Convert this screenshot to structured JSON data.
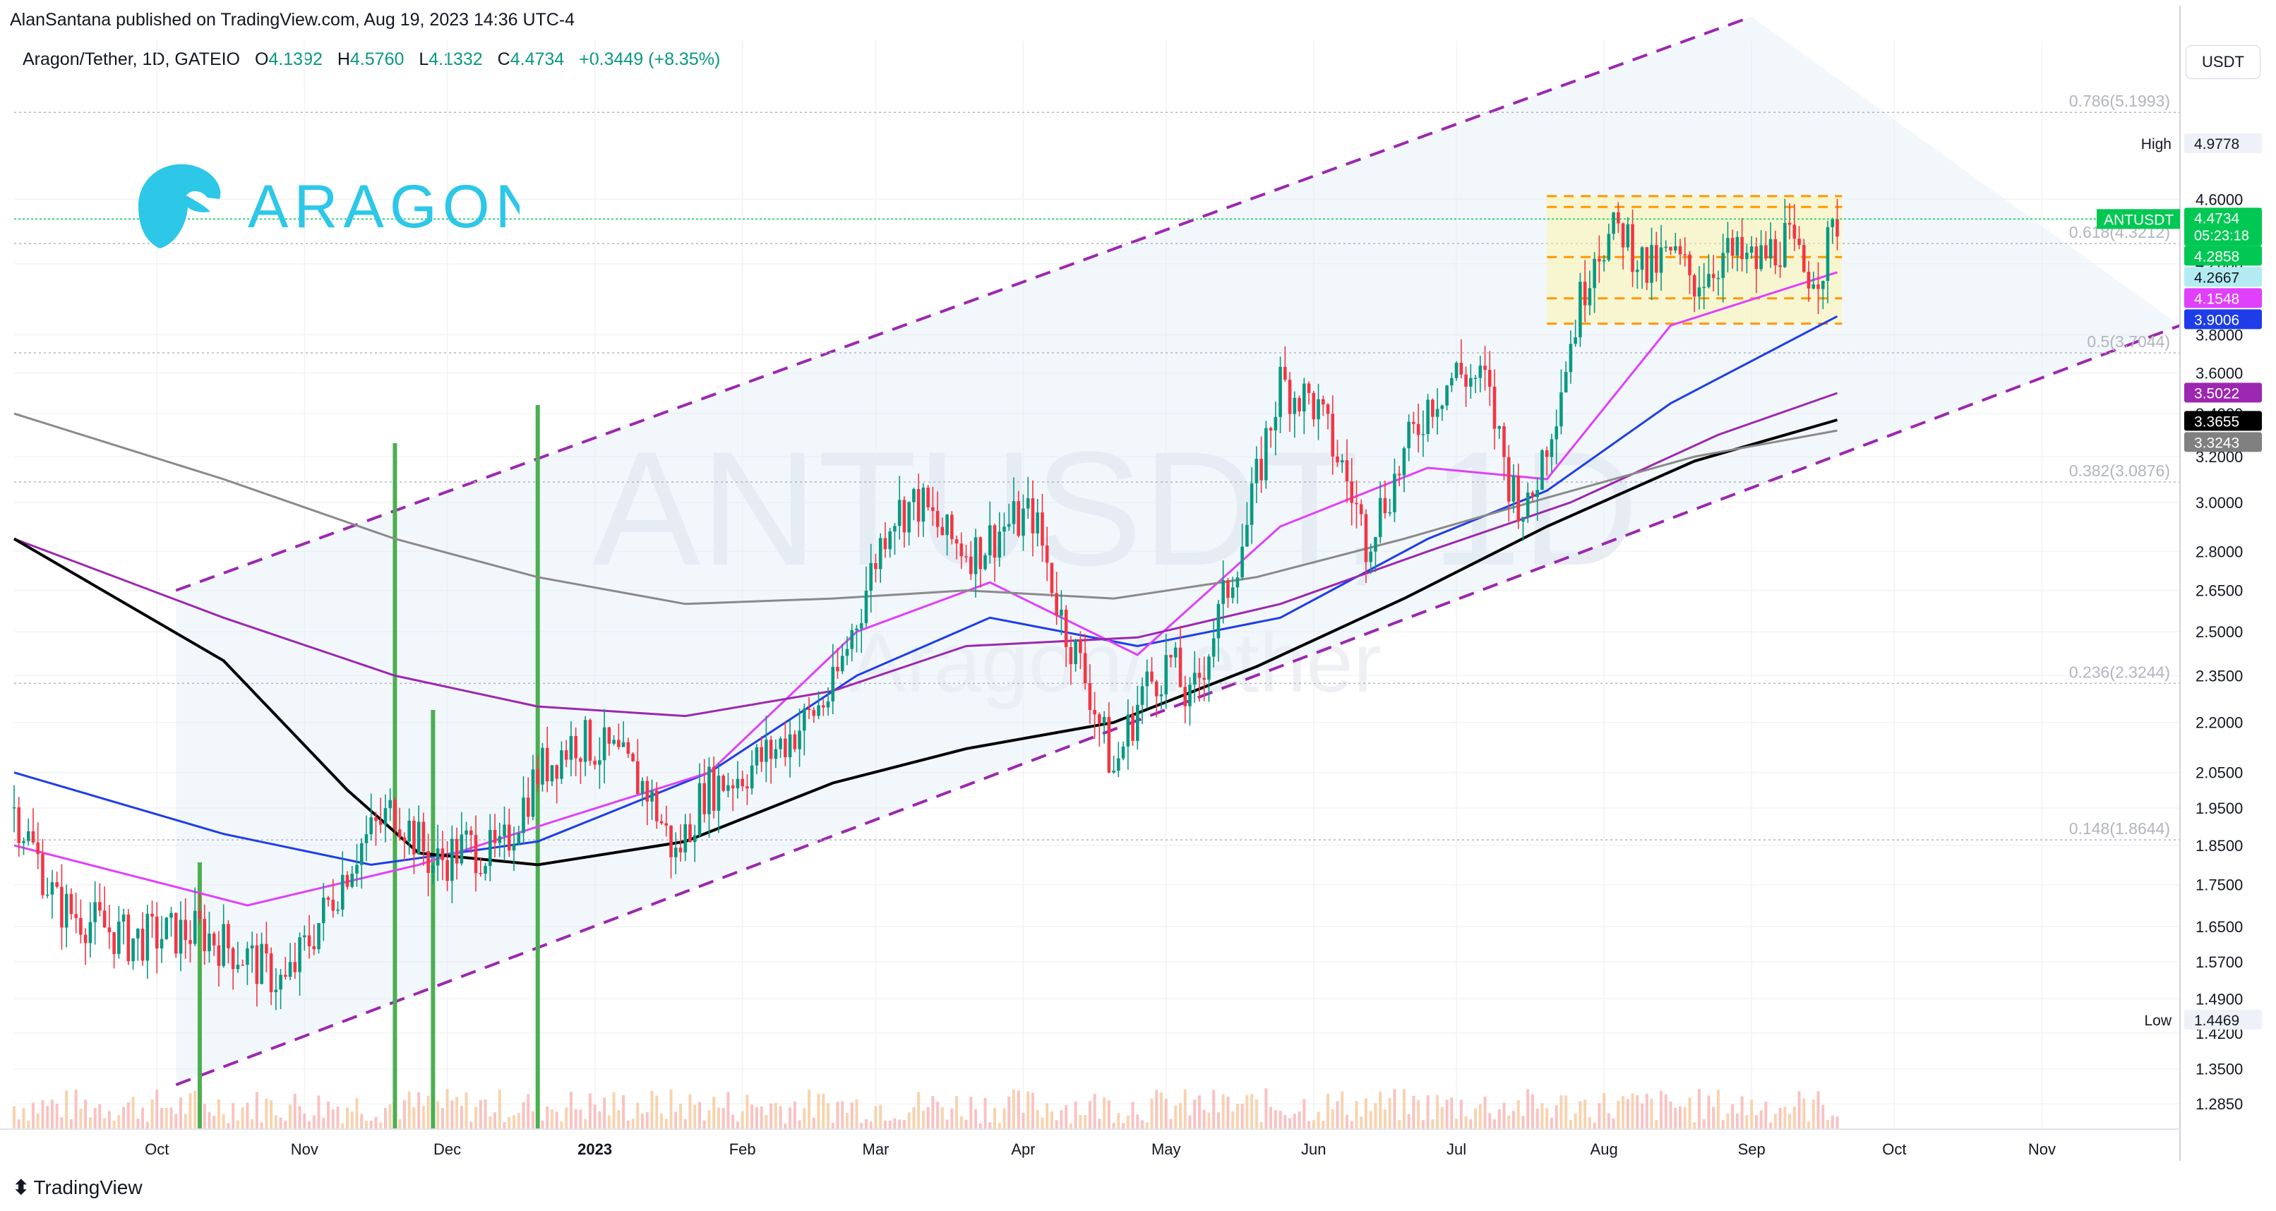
{
  "header": {
    "publisher": "AlanSantana published on TradingView.com, Aug 19, 2023 14:36 UTC-4",
    "symbol": "Aragon/Tether, 1D, GATEIO",
    "open_label": "O",
    "open": "4.1392",
    "high_label": "H",
    "high": "4.5760",
    "low_label": "L",
    "low": "4.1332",
    "close_label": "C",
    "close": "4.4734",
    "change": "+0.3449 (+8.35%)",
    "currency": "USDT"
  },
  "logo": {
    "text": "ARAGON",
    "color": "#2dc7e8"
  },
  "watermark": {
    "line1": "ANTUSDT, 1D",
    "line2": "Aragon/Tether"
  },
  "footer": {
    "brand": "TradingView"
  },
  "chart_data": {
    "type": "candlestick",
    "y_scale": "log",
    "ylim": [
      1.24,
      5.75
    ],
    "x_range": [
      "2022-09-01",
      "2023-11-30"
    ],
    "price_ticks": [
      "4.6000",
      "4.2000",
      "3.8000",
      "3.6000",
      "3.4000",
      "3.2000",
      "3.0000",
      "2.8000",
      "2.6500",
      "2.5000",
      "2.3500",
      "2.2000",
      "2.0500",
      "1.9500",
      "1.8500",
      "1.7500",
      "1.6500",
      "1.5700",
      "1.4900",
      "1.4200",
      "1.3500",
      "1.2850"
    ],
    "x_ticks": [
      {
        "label": "Oct",
        "date": "2022-10-01"
      },
      {
        "label": "Nov",
        "date": "2022-11-01"
      },
      {
        "label": "Dec",
        "date": "2022-12-01"
      },
      {
        "label": "2023",
        "date": "2023-01-01"
      },
      {
        "label": "Feb",
        "date": "2023-02-01"
      },
      {
        "label": "Mar",
        "date": "2023-03-01"
      },
      {
        "label": "Apr",
        "date": "2023-04-01"
      },
      {
        "label": "May",
        "date": "2023-05-01"
      },
      {
        "label": "Jun",
        "date": "2023-06-01"
      },
      {
        "label": "Jul",
        "date": "2023-07-01"
      },
      {
        "label": "Aug",
        "date": "2023-08-01"
      },
      {
        "label": "Sep",
        "date": "2023-09-01"
      },
      {
        "label": "Oct",
        "date": "2023-10-01"
      },
      {
        "label": "Nov",
        "date": "2023-11-01"
      }
    ],
    "price_path": [
      [
        "2022-09-01",
        1.95
      ],
      [
        "2022-09-10",
        1.7
      ],
      [
        "2022-09-25",
        1.62
      ],
      [
        "2022-10-10",
        1.64
      ],
      [
        "2022-10-20",
        1.58
      ],
      [
        "2022-10-28",
        1.52
      ],
      [
        "2022-11-05",
        1.68
      ],
      [
        "2022-11-12",
        1.84
      ],
      [
        "2022-11-20",
        1.95
      ],
      [
        "2022-11-28",
        1.8
      ],
      [
        "2022-12-05",
        1.85
      ],
      [
        "2022-12-12",
        1.82
      ],
      [
        "2022-12-20",
        2.05
      ],
      [
        "2022-12-28",
        2.15
      ],
      [
        "2023-01-05",
        2.1
      ],
      [
        "2023-01-12",
        2.0
      ],
      [
        "2023-01-18",
        1.82
      ],
      [
        "2023-01-24",
        2.0
      ],
      [
        "2023-02-01",
        2.05
      ],
      [
        "2023-02-08",
        2.12
      ],
      [
        "2023-02-14",
        2.2
      ],
      [
        "2023-02-20",
        2.3
      ],
      [
        "2023-02-26",
        2.6
      ],
      [
        "2023-03-04",
        2.95
      ],
      [
        "2023-03-10",
        3.0
      ],
      [
        "2023-03-16",
        2.85
      ],
      [
        "2023-03-22",
        2.8
      ],
      [
        "2023-03-28",
        2.9
      ],
      [
        "2023-04-03",
        2.95
      ],
      [
        "2023-04-09",
        2.55
      ],
      [
        "2023-04-15",
        2.3
      ],
      [
        "2023-04-20",
        2.05
      ],
      [
        "2023-04-26",
        2.3
      ],
      [
        "2023-05-02",
        2.4
      ],
      [
        "2023-05-06",
        2.25
      ],
      [
        "2023-05-12",
        2.55
      ],
      [
        "2023-05-18",
        2.9
      ],
      [
        "2023-05-25",
        3.55
      ],
      [
        "2023-06-01",
        3.45
      ],
      [
        "2023-06-07",
        3.15
      ],
      [
        "2023-06-12",
        2.85
      ],
      [
        "2023-06-18",
        3.1
      ],
      [
        "2023-06-25",
        3.45
      ],
      [
        "2023-07-01",
        3.6
      ],
      [
        "2023-07-07",
        3.55
      ],
      [
        "2023-07-12",
        3.1
      ],
      [
        "2023-07-16",
        2.95
      ],
      [
        "2023-07-22",
        3.45
      ],
      [
        "2023-07-30",
        4.3
      ],
      [
        "2023-08-05",
        4.4
      ],
      [
        "2023-08-10",
        4.15
      ],
      [
        "2023-08-15",
        4.25
      ],
      [
        "2023-08-20",
        4.1
      ],
      [
        "2023-08-26",
        4.25
      ],
      [
        "2023-09-02",
        4.2
      ],
      [
        "2023-09-08",
        4.35
      ],
      [
        "2023-09-12",
        4.15
      ],
      [
        "2023-09-16",
        4.2
      ],
      [
        "2023-09-19",
        4.47
      ]
    ],
    "series": [
      {
        "name": "ANTUSDT",
        "last": "4.4734",
        "countdown": "05:23:18",
        "color": "#00c853"
      }
    ],
    "ma_badges": [
      {
        "value": "4.2858",
        "color": "#00c853"
      },
      {
        "value": "4.2667",
        "color": "#b2ebf2"
      },
      {
        "value": "4.1548",
        "color": "#e040fb"
      },
      {
        "value": "3.9006",
        "color": "#1e3de8"
      },
      {
        "value": "3.5022",
        "color": "#9c27b0"
      },
      {
        "value": "3.3655",
        "color": "#000000"
      },
      {
        "value": "3.3243",
        "color": "#808080"
      }
    ],
    "moving_averages": [
      {
        "color": "#1e3de8",
        "pts": [
          [
            "2022-09-01",
            2.05
          ],
          [
            "2022-10-15",
            1.88
          ],
          [
            "2022-11-15",
            1.8
          ],
          [
            "2022-12-20",
            1.86
          ],
          [
            "2023-01-25",
            2.05
          ],
          [
            "2023-02-25",
            2.35
          ],
          [
            "2023-03-25",
            2.55
          ],
          [
            "2023-04-25",
            2.45
          ],
          [
            "2023-05-25",
            2.55
          ],
          [
            "2023-06-25",
            2.85
          ],
          [
            "2023-07-20",
            3.05
          ],
          [
            "2023-08-15",
            3.45
          ],
          [
            "2023-09-19",
            3.9
          ]
        ]
      },
      {
        "color": "#e040fb",
        "pts": [
          [
            "2022-09-01",
            1.85
          ],
          [
            "2022-10-20",
            1.7
          ],
          [
            "2022-11-25",
            1.8
          ],
          [
            "2022-12-25",
            1.92
          ],
          [
            "2023-01-25",
            2.05
          ],
          [
            "2023-02-25",
            2.5
          ],
          [
            "2023-03-25",
            2.68
          ],
          [
            "2023-04-25",
            2.42
          ],
          [
            "2023-05-25",
            2.9
          ],
          [
            "2023-06-25",
            3.15
          ],
          [
            "2023-07-20",
            3.1
          ],
          [
            "2023-08-15",
            3.85
          ],
          [
            "2023-09-19",
            4.15
          ]
        ]
      },
      {
        "color": "#9c27b0",
        "pts": [
          [
            "2022-09-01",
            2.85
          ],
          [
            "2022-10-15",
            2.55
          ],
          [
            "2022-11-20",
            2.35
          ],
          [
            "2022-12-20",
            2.25
          ],
          [
            "2023-01-20",
            2.22
          ],
          [
            "2023-02-20",
            2.3
          ],
          [
            "2023-03-20",
            2.45
          ],
          [
            "2023-04-25",
            2.48
          ],
          [
            "2023-05-25",
            2.6
          ],
          [
            "2023-06-25",
            2.8
          ],
          [
            "2023-07-25",
            3.0
          ],
          [
            "2023-08-25",
            3.3
          ],
          [
            "2023-09-19",
            3.5
          ]
        ]
      },
      {
        "color": "#000000",
        "pts": [
          [
            "2022-09-01",
            2.85
          ],
          [
            "2022-10-15",
            2.4
          ],
          [
            "2022-11-10",
            2.0
          ],
          [
            "2022-11-25",
            1.83
          ],
          [
            "2022-12-20",
            1.8
          ],
          [
            "2023-01-20",
            1.86
          ],
          [
            "2023-02-20",
            2.02
          ],
          [
            "2023-03-20",
            2.12
          ],
          [
            "2023-04-20",
            2.2
          ],
          [
            "2023-05-20",
            2.38
          ],
          [
            "2023-06-20",
            2.62
          ],
          [
            "2023-07-20",
            2.9
          ],
          [
            "2023-08-20",
            3.18
          ],
          [
            "2023-09-19",
            3.37
          ]
        ]
      },
      {
        "color": "#8a8a8a",
        "pts": [
          [
            "2022-09-01",
            3.4
          ],
          [
            "2022-10-15",
            3.1
          ],
          [
            "2022-11-20",
            2.85
          ],
          [
            "2022-12-20",
            2.7
          ],
          [
            "2023-01-20",
            2.6
          ],
          [
            "2023-02-20",
            2.62
          ],
          [
            "2023-03-20",
            2.65
          ],
          [
            "2023-04-20",
            2.62
          ],
          [
            "2023-05-20",
            2.7
          ],
          [
            "2023-06-20",
            2.85
          ],
          [
            "2023-07-20",
            3.02
          ],
          [
            "2023-08-20",
            3.2
          ],
          [
            "2023-09-19",
            3.32
          ]
        ]
      }
    ],
    "channel": {
      "upper": [
        [
          "2022-10-05",
          2.65
        ],
        [
          "2023-09-01",
          5.95
        ]
      ],
      "lower": [
        [
          "2022-10-05",
          1.32
        ],
        [
          "2023-11-30",
          3.85
        ]
      ],
      "color": "#9c27b0"
    },
    "range_box": {
      "from": "2023-07-20",
      "to": "2023-09-20",
      "top": 4.62,
      "bottom": 3.86,
      "lines": [
        4.62,
        4.55,
        4.24,
        4.0,
        3.86
      ]
    },
    "fib_levels": [
      {
        "label": "0.786(5.1993)",
        "price": 5.1993
      },
      {
        "label": "0.618(4.3212)",
        "price": 4.3212
      },
      {
        "label": "0.5(3.7044)",
        "price": 3.7044
      },
      {
        "label": "0.382(3.0876)",
        "price": 3.0876
      },
      {
        "label": "0.236(2.3244)",
        "price": 2.3244
      },
      {
        "label": "0.148(1.8644)",
        "price": 1.8644
      }
    ],
    "high_marker": {
      "label": "High",
      "value": "4.9778"
    },
    "low_marker": {
      "label": "Low",
      "value": "1.4469"
    },
    "volume_spikes": [
      [
        "2022-11-20",
        0.9
      ],
      [
        "2022-12-20",
        0.95
      ],
      [
        "2022-11-28",
        0.55
      ],
      [
        "2022-10-10",
        0.35
      ]
    ],
    "grid": true
  }
}
